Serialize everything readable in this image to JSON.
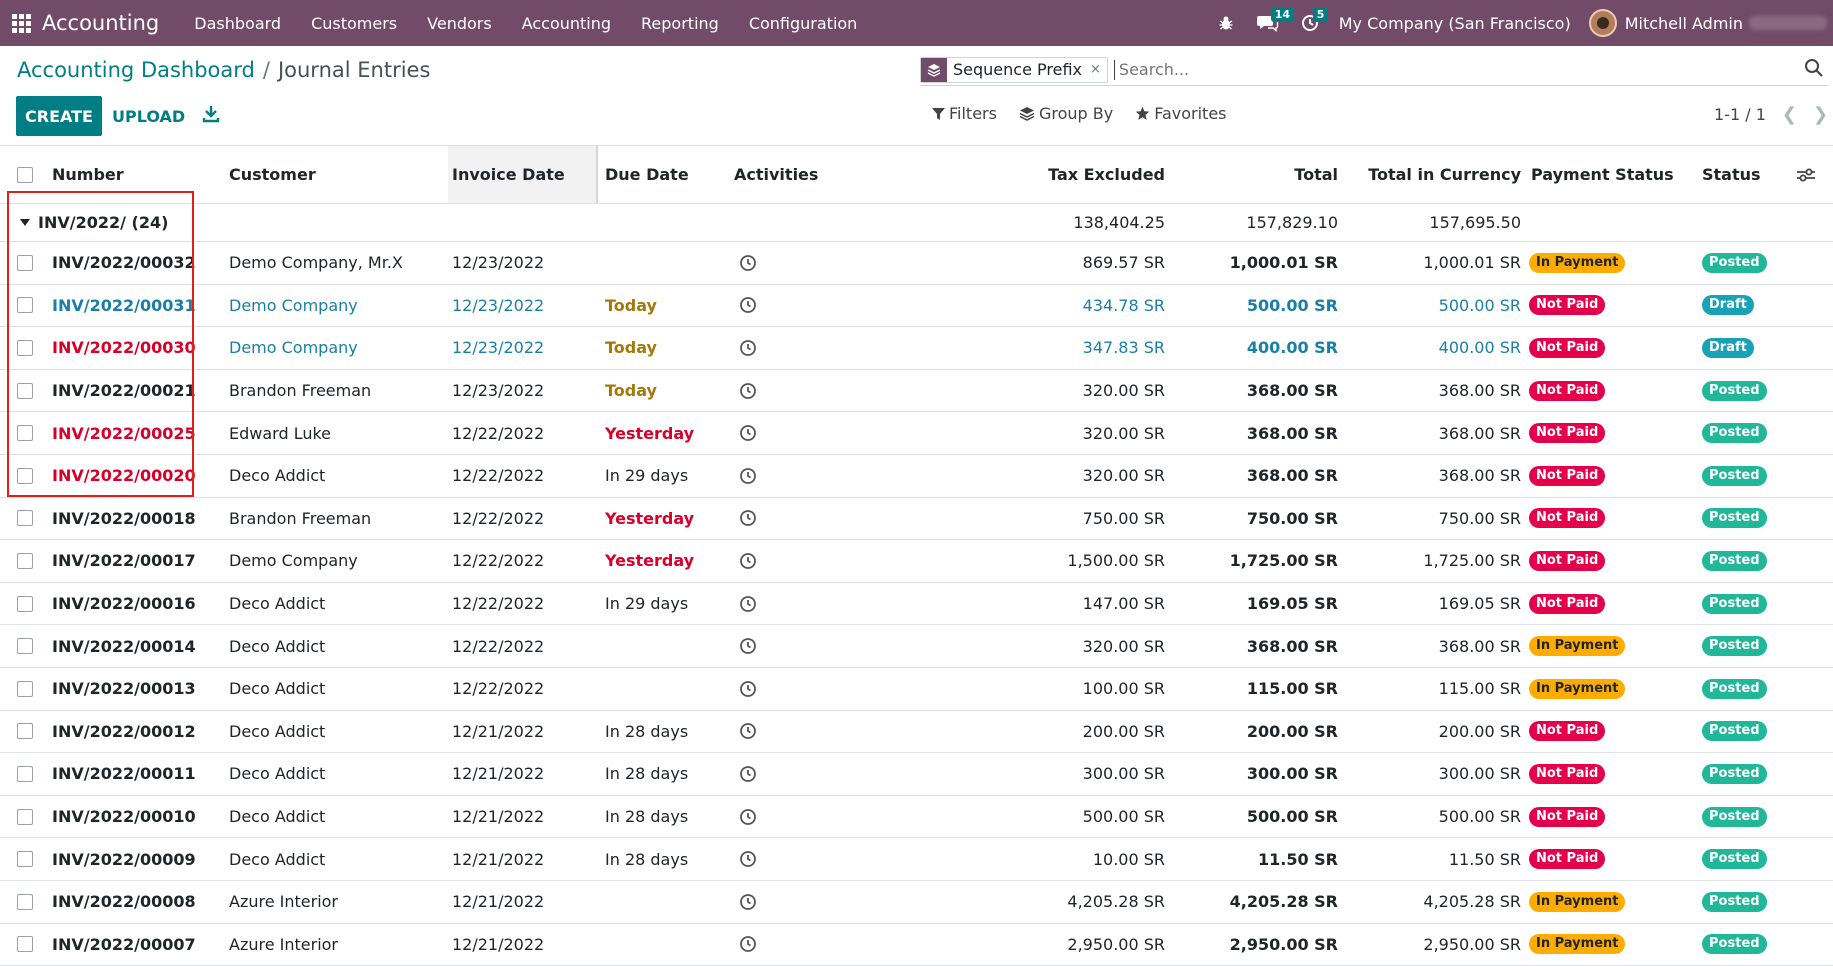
{
  "navbar": {
    "app_name": "Accounting",
    "menu": [
      "Dashboard",
      "Customers",
      "Vendors",
      "Accounting",
      "Reporting",
      "Configuration"
    ],
    "messages_count": "14",
    "activities_count": "5",
    "company": "My Company (San Francisco)",
    "user": "Mitchell Admin"
  },
  "breadcrumb": {
    "parent": "Accounting Dashboard",
    "separator": "/",
    "current": "Journal Entries"
  },
  "search": {
    "facet_label": "Sequence Prefix",
    "facet_remove": "×",
    "placeholder": "Search..."
  },
  "toolbar": {
    "create_label": "CREATE",
    "upload_label": "UPLOAD",
    "filters_label": "Filters",
    "groupby_label": "Group By",
    "favorites_label": "Favorites",
    "pager": "1-1 / 1"
  },
  "table": {
    "columns": {
      "number": "Number",
      "customer": "Customer",
      "invoice_date": "Invoice Date",
      "due_date": "Due Date",
      "activities": "Activities",
      "tax_excluded": "Tax Excluded",
      "total": "Total",
      "total_currency": "Total in Currency",
      "payment_status": "Payment Status",
      "status": "Status"
    },
    "group": {
      "title": "INV/2022/ (24)",
      "tax_excluded": "138,404.25",
      "total": "157,829.10",
      "total_currency": "157,695.50"
    },
    "rows": [
      {
        "number": "INV/2022/00032",
        "customer": "Demo Company, Mr.X",
        "invoice_date": "12/23/2022",
        "due_date": "",
        "tax_excluded": "869.57 SR",
        "total": "1,000.01 SR",
        "total_currency": "1,000.01 SR",
        "payment_status": "In Payment",
        "status": "Posted"
      },
      {
        "number": "INV/2022/00031",
        "customer": "Demo Company",
        "invoice_date": "12/23/2022",
        "due_date": "Today",
        "tax_excluded": "434.78 SR",
        "total": "500.00 SR",
        "total_currency": "500.00 SR",
        "payment_status": "Not Paid",
        "status": "Draft"
      },
      {
        "number": "INV/2022/00030",
        "customer": "Demo Company",
        "invoice_date": "12/23/2022",
        "due_date": "Today",
        "tax_excluded": "347.83 SR",
        "total": "400.00 SR",
        "total_currency": "400.00 SR",
        "payment_status": "Not Paid",
        "status": "Draft"
      },
      {
        "number": "INV/2022/00021",
        "customer": "Brandon Freeman",
        "invoice_date": "12/23/2022",
        "due_date": "Today",
        "tax_excluded": "320.00 SR",
        "total": "368.00 SR",
        "total_currency": "368.00 SR",
        "payment_status": "Not Paid",
        "status": "Posted"
      },
      {
        "number": "INV/2022/00025",
        "customer": "Edward Luke",
        "invoice_date": "12/22/2022",
        "due_date": "Yesterday",
        "tax_excluded": "320.00 SR",
        "total": "368.00 SR",
        "total_currency": "368.00 SR",
        "payment_status": "Not Paid",
        "status": "Posted"
      },
      {
        "number": "INV/2022/00020",
        "customer": "Deco Addict",
        "invoice_date": "12/22/2022",
        "due_date": "In 29 days",
        "tax_excluded": "320.00 SR",
        "total": "368.00 SR",
        "total_currency": "368.00 SR",
        "payment_status": "Not Paid",
        "status": "Posted"
      },
      {
        "number": "INV/2022/00018",
        "customer": "Brandon Freeman",
        "invoice_date": "12/22/2022",
        "due_date": "Yesterday",
        "tax_excluded": "750.00 SR",
        "total": "750.00 SR",
        "total_currency": "750.00 SR",
        "payment_status": "Not Paid",
        "status": "Posted"
      },
      {
        "number": "INV/2022/00017",
        "customer": "Demo Company",
        "invoice_date": "12/22/2022",
        "due_date": "Yesterday",
        "tax_excluded": "1,500.00 SR",
        "total": "1,725.00 SR",
        "total_currency": "1,725.00 SR",
        "payment_status": "Not Paid",
        "status": "Posted"
      },
      {
        "number": "INV/2022/00016",
        "customer": "Deco Addict",
        "invoice_date": "12/22/2022",
        "due_date": "In 29 days",
        "tax_excluded": "147.00 SR",
        "total": "169.05 SR",
        "total_currency": "169.05 SR",
        "payment_status": "Not Paid",
        "status": "Posted"
      },
      {
        "number": "INV/2022/00014",
        "customer": "Deco Addict",
        "invoice_date": "12/22/2022",
        "due_date": "",
        "tax_excluded": "320.00 SR",
        "total": "368.00 SR",
        "total_currency": "368.00 SR",
        "payment_status": "In Payment",
        "status": "Posted"
      },
      {
        "number": "INV/2022/00013",
        "customer": "Deco Addict",
        "invoice_date": "12/22/2022",
        "due_date": "",
        "tax_excluded": "100.00 SR",
        "total": "115.00 SR",
        "total_currency": "115.00 SR",
        "payment_status": "In Payment",
        "status": "Posted"
      },
      {
        "number": "INV/2022/00012",
        "customer": "Deco Addict",
        "invoice_date": "12/21/2022",
        "due_date": "In 28 days",
        "tax_excluded": "200.00 SR",
        "total": "200.00 SR",
        "total_currency": "200.00 SR",
        "payment_status": "Not Paid",
        "status": "Posted"
      },
      {
        "number": "INV/2022/00011",
        "customer": "Deco Addict",
        "invoice_date": "12/21/2022",
        "due_date": "In 28 days",
        "tax_excluded": "300.00 SR",
        "total": "300.00 SR",
        "total_currency": "300.00 SR",
        "payment_status": "Not Paid",
        "status": "Posted"
      },
      {
        "number": "INV/2022/00010",
        "customer": "Deco Addict",
        "invoice_date": "12/21/2022",
        "due_date": "In 28 days",
        "tax_excluded": "500.00 SR",
        "total": "500.00 SR",
        "total_currency": "500.00 SR",
        "payment_status": "Not Paid",
        "status": "Posted"
      },
      {
        "number": "INV/2022/00009",
        "customer": "Deco Addict",
        "invoice_date": "12/21/2022",
        "due_date": "In 28 days",
        "tax_excluded": "10.00 SR",
        "total": "11.50 SR",
        "total_currency": "11.50 SR",
        "payment_status": "Not Paid",
        "status": "Posted"
      },
      {
        "number": "INV/2022/00008",
        "customer": "Azure Interior",
        "invoice_date": "12/21/2022",
        "due_date": "",
        "tax_excluded": "4,205.28 SR",
        "total": "4,205.28 SR",
        "total_currency": "4,205.28 SR",
        "payment_status": "In Payment",
        "status": "Posted"
      },
      {
        "number": "INV/2022/00007",
        "customer": "Azure Interior",
        "invoice_date": "12/21/2022",
        "due_date": "",
        "tax_excluded": "2,950.00 SR",
        "total": "2,950.00 SR",
        "total_currency": "2,950.00 SR",
        "payment_status": "In Payment",
        "status": "Posted"
      }
    ]
  },
  "colors": {
    "navbar": "#714B67",
    "primary": "#017E84",
    "in_payment": "#FFAC00",
    "not_paid": "#E4004B",
    "posted": "#21B799",
    "draft": "#17A2B8",
    "highlight": "#e0211a"
  },
  "icons": [
    "apps-grid-icon",
    "bug-icon",
    "chat-icon",
    "clock-icon",
    "search-icon",
    "download-icon",
    "filter-icon",
    "layers-icon",
    "star-icon",
    "chevron-left-icon",
    "chevron-right-icon",
    "optional-columns-icon"
  ]
}
